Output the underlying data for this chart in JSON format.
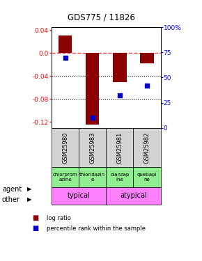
{
  "title": "GDS775 / 11826",
  "samples": [
    "GSM25980",
    "GSM25983",
    "GSM25981",
    "GSM25982"
  ],
  "log_ratios": [
    0.031,
    -0.125,
    -0.05,
    -0.018
  ],
  "percentile_ranks": [
    70,
    10,
    32,
    42
  ],
  "ylim_left": [
    -0.13,
    0.045
  ],
  "ylim_right": [
    0,
    100
  ],
  "yticks_left": [
    0.04,
    0.0,
    -0.04,
    -0.08,
    -0.12
  ],
  "yticks_right": [
    100,
    75,
    50,
    25,
    0
  ],
  "agents": [
    "chlorprom\nazine",
    "thioridazin\ne",
    "olanzap\nine",
    "quetiapi\nne"
  ],
  "other_color": "#FF80FF",
  "agent_color": "#90EE90",
  "bar_color": "#8B0000",
  "dot_color": "#0000CD",
  "zero_line_color": "#FF4444",
  "grid_color": "#000000",
  "bar_width": 0.5,
  "sample_bg_color": "#D3D3D3"
}
